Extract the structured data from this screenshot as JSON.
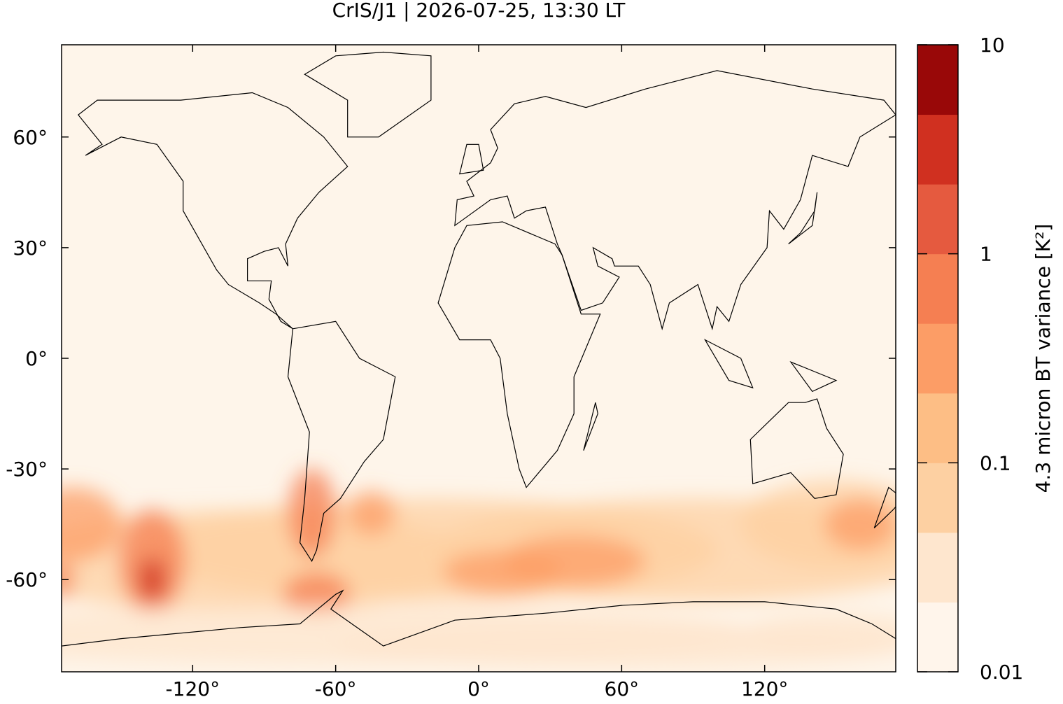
{
  "chart_data": {
    "type": "map",
    "title": "CrIS/J1 | 2026-07-25, 13:30 LT",
    "xlim": [
      -175,
      175
    ],
    "ylim": [
      -85,
      85
    ],
    "xticks": [
      {
        "value": -120,
        "label": "-120°"
      },
      {
        "value": -60,
        "label": "-60°"
      },
      {
        "value": 0,
        "label": "0°"
      },
      {
        "value": 60,
        "label": "60°"
      },
      {
        "value": 120,
        "label": "120°"
      }
    ],
    "yticks": [
      {
        "value": 60,
        "label": "60°"
      },
      {
        "value": 30,
        "label": "30°"
      },
      {
        "value": 0,
        "label": "0°"
      },
      {
        "value": -30,
        "label": "-30°"
      },
      {
        "value": -60,
        "label": "-60°"
      }
    ],
    "colorbar": {
      "label": "4.3 micron BT variance [K²]",
      "log_scale": true,
      "lim": [
        0.01,
        10
      ],
      "ticks": [
        0.01,
        0.1,
        1,
        10
      ],
      "colors": [
        "#fff5eb",
        "#fee6ce",
        "#fdd0a2",
        "#fdbe85",
        "#fc9d66",
        "#f57f52",
        "#e55a3f",
        "#d03020",
        "#990808"
      ]
    }
  }
}
